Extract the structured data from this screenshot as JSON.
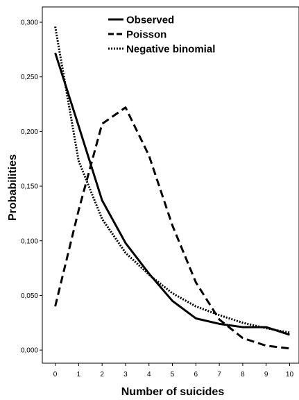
{
  "chart_data": {
    "type": "line",
    "title": "",
    "xlabel": "Number of suicides",
    "ylabel": "Probabilities",
    "x": [
      0,
      1,
      2,
      3,
      4,
      5,
      6,
      7,
      8,
      9,
      10
    ],
    "x_tick_labels": [
      "0",
      "1",
      "2",
      "3",
      "4",
      "5",
      "6",
      "7",
      "8",
      "9",
      "10"
    ],
    "xlim": [
      -0.55,
      10.4
    ],
    "ylim": [
      -0.012,
      0.314
    ],
    "y_ticks": [
      0.0,
      0.05,
      0.1,
      0.15,
      0.2,
      0.25,
      0.3
    ],
    "y_tick_labels": [
      "0,000",
      "0,050",
      "0,100",
      "0,150",
      "0,200",
      "0,250",
      "0,300"
    ],
    "grid": false,
    "legend_position": "top-center",
    "series": [
      {
        "name": "Observed",
        "line_style": "solid",
        "color": "#000000",
        "values": [
          0.272,
          0.205,
          0.137,
          0.098,
          0.07,
          0.045,
          0.029,
          0.024,
          0.021,
          0.021,
          0.014
        ]
      },
      {
        "name": "Poisson",
        "line_style": "dashed",
        "color": "#000000",
        "values": [
          0.04,
          0.128,
          0.207,
          0.222,
          0.178,
          0.114,
          0.062,
          0.028,
          0.011,
          0.004,
          0.0015
        ]
      },
      {
        "name": "Negative binomial",
        "line_style": "dotted",
        "color": "#000000",
        "values": [
          0.296,
          0.173,
          0.12,
          0.089,
          0.069,
          0.052,
          0.04,
          0.032,
          0.025,
          0.02,
          0.016
        ]
      }
    ]
  }
}
